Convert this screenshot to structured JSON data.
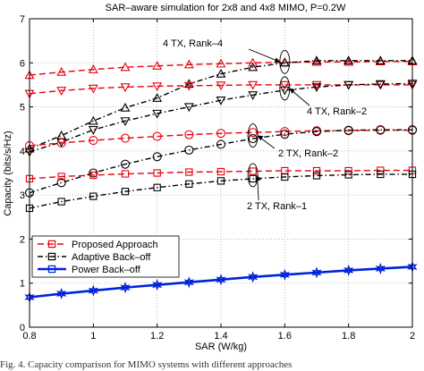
{
  "chart_data": {
    "type": "line",
    "title": "SAR–aware simulation for 2x8 and 4x8 MIMO, P=0.2W",
    "xlabel": "SAR (W/kg)",
    "ylabel": "Capacity (bits/s/Hz)",
    "xlim": [
      0.8,
      2.0
    ],
    "ylim": [
      0,
      7
    ],
    "xticks": [
      "0.8",
      "1",
      "1.2",
      "1.4",
      "1.6",
      "1.8",
      "2"
    ],
    "yticks": [
      "0",
      "1",
      "2",
      "3",
      "4",
      "5",
      "6",
      "7"
    ],
    "grid": true,
    "legend_position": "bottom-left",
    "legend": [
      {
        "label": "Proposed Approach",
        "color": "#e8000b",
        "style": "dashed",
        "marker": "square"
      },
      {
        "label": "Adaptive Back–off",
        "color": "#000000",
        "style": "dashdot",
        "marker": "square"
      },
      {
        "label": "Power Back–off",
        "color": "#0022dd",
        "style": "solid",
        "marker": "square"
      }
    ],
    "x": [
      0.8,
      0.9,
      1.0,
      1.1,
      1.2,
      1.3,
      1.4,
      1.5,
      1.6,
      1.7,
      1.8,
      1.9,
      2.0
    ],
    "series": [
      {
        "group": "4tx-rank4",
        "method": "proposed",
        "color": "#e8000b",
        "style": "dashed",
        "marker": "triangle-up",
        "values": [
          5.72,
          5.79,
          5.85,
          5.9,
          5.93,
          5.96,
          5.98,
          6.0,
          6.01,
          6.02,
          6.02,
          6.03,
          6.03
        ]
      },
      {
        "group": "4tx-rank4",
        "method": "adaptive",
        "color": "#000000",
        "style": "dashdot",
        "marker": "triangle-up",
        "values": [
          4.05,
          4.35,
          4.68,
          4.98,
          5.2,
          5.52,
          5.75,
          5.9,
          6.0,
          6.05,
          6.05,
          6.05,
          6.05
        ]
      },
      {
        "group": "4tx-rank2",
        "method": "proposed",
        "color": "#e8000b",
        "style": "dashed",
        "marker": "triangle-down",
        "values": [
          5.3,
          5.37,
          5.42,
          5.45,
          5.47,
          5.48,
          5.49,
          5.5,
          5.5,
          5.5,
          5.5,
          5.5,
          5.5
        ]
      },
      {
        "group": "4tx-rank2",
        "method": "adaptive",
        "color": "#000000",
        "style": "dashdot",
        "marker": "triangle-down",
        "values": [
          3.98,
          4.2,
          4.48,
          4.68,
          4.85,
          5.0,
          5.15,
          5.27,
          5.38,
          5.45,
          5.5,
          5.52,
          5.53
        ]
      },
      {
        "group": "2tx-rank2",
        "method": "proposed",
        "color": "#e8000b",
        "style": "dashed",
        "marker": "circle",
        "values": [
          4.12,
          4.18,
          4.24,
          4.29,
          4.33,
          4.37,
          4.4,
          4.42,
          4.44,
          4.46,
          4.46,
          4.47,
          4.47
        ]
      },
      {
        "group": "2tx-rank2",
        "method": "adaptive",
        "color": "#000000",
        "style": "dashdot",
        "marker": "circle",
        "values": [
          3.05,
          3.28,
          3.5,
          3.7,
          3.87,
          4.02,
          4.15,
          4.28,
          4.38,
          4.44,
          4.47,
          4.48,
          4.48
        ]
      },
      {
        "group": "2tx-rank1",
        "method": "proposed",
        "color": "#e8000b",
        "style": "dashed",
        "marker": "square",
        "values": [
          3.37,
          3.42,
          3.45,
          3.48,
          3.5,
          3.52,
          3.53,
          3.54,
          3.55,
          3.55,
          3.55,
          3.56,
          3.56
        ]
      },
      {
        "group": "2tx-rank1",
        "method": "adaptive",
        "color": "#000000",
        "style": "dashdot",
        "marker": "square",
        "values": [
          2.7,
          2.85,
          2.97,
          3.08,
          3.17,
          3.25,
          3.32,
          3.37,
          3.41,
          3.44,
          3.46,
          3.47,
          3.47
        ]
      },
      {
        "group": "power-backoff",
        "method": "power",
        "color": "#0022dd",
        "style": "solid",
        "marker": "star",
        "values": [
          0.68,
          0.76,
          0.83,
          0.9,
          0.96,
          1.02,
          1.08,
          1.14,
          1.19,
          1.24,
          1.29,
          1.33,
          1.37
        ]
      }
    ],
    "annotations": [
      {
        "label": "4 TX, Rank–4",
        "ellipse_x": 1.6,
        "ellipse_y": 6.02
      },
      {
        "label": "4 TX, Rank–2",
        "ellipse_x": 1.6,
        "ellipse_y": 5.42
      },
      {
        "label": "2 TX, Rank–2",
        "ellipse_x": 1.5,
        "ellipse_y": 4.35
      },
      {
        "label": "2 TX, Rank–1",
        "ellipse_x": 1.5,
        "ellipse_y": 3.45
      }
    ]
  },
  "caption": "Fig. 4.  Capacity comparison for MIMO systems with different approaches"
}
